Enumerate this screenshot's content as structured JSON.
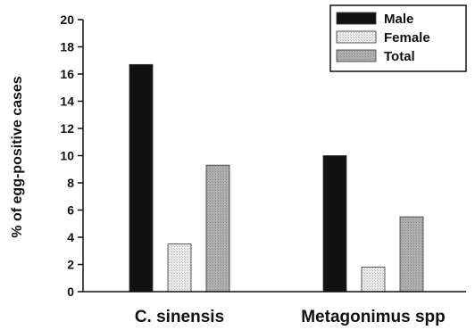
{
  "chart_data": {
    "type": "bar",
    "categories": [
      "C. sinensis",
      "Metagonimus spp"
    ],
    "series": [
      {
        "name": "Male",
        "values": [
          16.7,
          10.0
        ],
        "color": "#111111"
      },
      {
        "name": "Female",
        "values": [
          3.5,
          1.8
        ],
        "color": "#e6e6e6"
      },
      {
        "name": "Total",
        "values": [
          9.3,
          5.5
        ],
        "color": "#a9a9a9"
      }
    ],
    "ylabel": "% of egg-positive cases",
    "xlabel": "",
    "ylim": [
      0,
      20
    ],
    "yticks": [
      0,
      2,
      4,
      6,
      8,
      10,
      12,
      14,
      16,
      18,
      20
    ],
    "grid": false,
    "legend": {
      "position": "top-right",
      "entries": [
        "Male",
        "Female",
        "Total"
      ]
    }
  }
}
